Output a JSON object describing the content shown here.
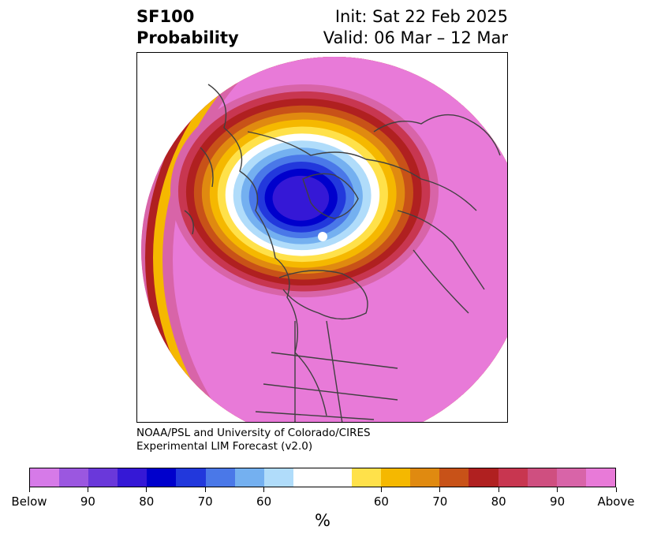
{
  "header": {
    "product": "SF100",
    "subtitle": "Probability",
    "init": "Init: Sat 22 Feb 2025",
    "valid": "Valid: 06 Mar – 12 Mar"
  },
  "credit": {
    "line1": "NOAA/PSL and University of Colorado/CIRES",
    "line2": "Experimental LIM Forecast (v2.0)"
  },
  "colorbar": {
    "unit": "%",
    "colors": [
      "#d67ae8",
      "#9b57e0",
      "#6a38da",
      "#3518d6",
      "#0000cc",
      "#2238dc",
      "#4a78e8",
      "#74b0f0",
      "#b0dcfa",
      "#ffffff",
      "#ffffff",
      "#ffe14a",
      "#f5b800",
      "#e08a10",
      "#c85218",
      "#b02020",
      "#c83650",
      "#cf4f80",
      "#d864a8",
      "#e87ad8"
    ],
    "labels": [
      "Below",
      "90",
      "80",
      "70",
      "60",
      "60",
      "70",
      "80",
      "90",
      "Above"
    ]
  },
  "map": {
    "fill_color": "#e87ad8",
    "anomaly_center": "blue",
    "ring_colors": [
      "#d864a8",
      "#c83650",
      "#b02020",
      "#c85218",
      "#e08a10",
      "#f5b800",
      "#ffe14a",
      "#ffffff",
      "#b0dcfa",
      "#74b0f0",
      "#4a78e8",
      "#2238dc",
      "#0000cc",
      "#3518d6"
    ]
  }
}
